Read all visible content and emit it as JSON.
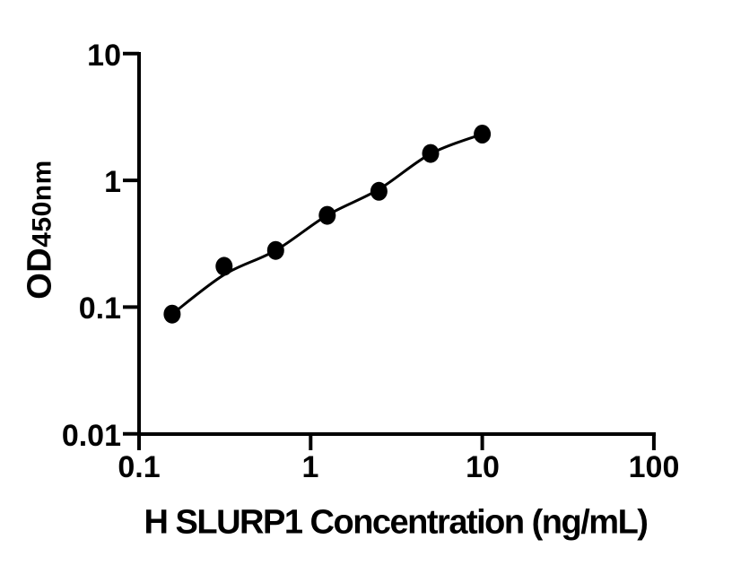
{
  "figure": {
    "background_color": "#ffffff",
    "axis_color": "#000000",
    "x_axis": {
      "title": "H SLURP1 Concentration (ng/mL)",
      "tick_labels": [
        "0.1",
        "1",
        "10",
        "100"
      ]
    },
    "y_axis": {
      "title_main": "OD",
      "title_sub": "450nm",
      "tick_labels": [
        "10",
        "1",
        "0.1",
        "0.01"
      ]
    }
  },
  "chart_data": {
    "type": "scatter",
    "title": "",
    "xlabel": "H SLURP1 Concentration (ng/mL)",
    "ylabel": "OD450nm",
    "x_scale": "log",
    "y_scale": "log",
    "xlim": [
      0.1,
      100
    ],
    "ylim": [
      0.01,
      10
    ],
    "x_ticks": [
      0.1,
      1,
      10,
      100
    ],
    "y_ticks": [
      10,
      1,
      0.1,
      0.01
    ],
    "grid": false,
    "legend": false,
    "x": [
      0.156,
      0.313,
      0.625,
      1.25,
      2.5,
      5,
      10
    ],
    "y": [
      0.088,
      0.21,
      0.28,
      0.53,
      0.82,
      1.63,
      2.32
    ],
    "fit_y": [
      0.088,
      0.18,
      0.28,
      0.53,
      0.85,
      1.62,
      2.32
    ],
    "marker_color": "#000000",
    "line_color": "#000000"
  }
}
